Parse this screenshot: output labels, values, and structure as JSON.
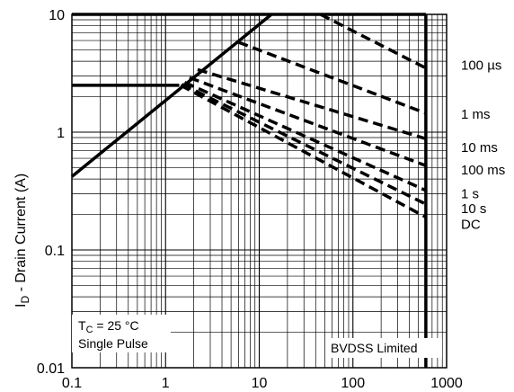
{
  "chart_data": {
    "type": "line",
    "x_scale": "log",
    "y_scale": "log",
    "xlim": [
      0.1,
      1000
    ],
    "ylim": [
      0.01,
      10
    ],
    "grid": true,
    "ylabel": {
      "main": "I",
      "sub": "D",
      "rest": " - Drain Current (A)"
    },
    "x_ticks": [
      {
        "value": 0.1,
        "label": "0.1"
      },
      {
        "value": 1,
        "label": "1"
      },
      {
        "value": 10,
        "label": "10"
      },
      {
        "value": 100,
        "label": "100"
      },
      {
        "value": 1000,
        "label": "1000"
      }
    ],
    "y_ticks": [
      {
        "value": 0.01,
        "label": "0.01"
      },
      {
        "value": 0.1,
        "label": "0.1"
      },
      {
        "value": 1,
        "label": "1"
      },
      {
        "value": 10,
        "label": "10"
      }
    ],
    "limits": [
      {
        "id": "rds-on-limit",
        "points": [
          [
            0.1,
            0.42
          ],
          [
            13.5,
            10
          ]
        ]
      },
      {
        "id": "package-current-limit",
        "points": [
          [
            0.1,
            2.5
          ],
          [
            1.4,
            2.5
          ]
        ]
      },
      {
        "id": "max-current-limit",
        "points": [
          [
            0.1,
            10
          ],
          [
            600,
            10
          ]
        ]
      },
      {
        "id": "bvdss-voltage-limit",
        "points": [
          [
            600,
            10
          ],
          [
            600,
            0.01
          ]
        ]
      }
    ],
    "series": [
      {
        "name": "100 µs",
        "label_value": 3.7,
        "points": [
          [
            45,
            10
          ],
          [
            600,
            3.5
          ]
        ]
      },
      {
        "name": "1 ms",
        "label_value": 1.42,
        "points": [
          [
            6,
            5.8
          ],
          [
            600,
            1.45
          ]
        ]
      },
      {
        "name": "10 ms",
        "label_value": 0.74,
        "points": [
          [
            2.2,
            3.4
          ],
          [
            600,
            0.88
          ]
        ]
      },
      {
        "name": "100 ms",
        "label_value": 0.48,
        "points": [
          [
            1.8,
            2.9
          ],
          [
            600,
            0.52
          ]
        ]
      },
      {
        "name": "1 s",
        "label_value": 0.3,
        "points": [
          [
            1.6,
            2.65
          ],
          [
            600,
            0.32
          ]
        ]
      },
      {
        "name": "10 s",
        "label_value": 0.225,
        "points": [
          [
            1.5,
            2.55
          ],
          [
            600,
            0.245
          ]
        ]
      },
      {
        "name": "DC",
        "label_value": 0.165,
        "points": [
          [
            1.45,
            2.5
          ],
          [
            600,
            0.19
          ]
        ]
      }
    ],
    "annotations": {
      "condition_prefix": "T",
      "condition_sub": "C",
      "condition_rest": " = 25 °C",
      "pulse": "Single Pulse",
      "limit_note": "BVDSS Limited"
    }
  }
}
